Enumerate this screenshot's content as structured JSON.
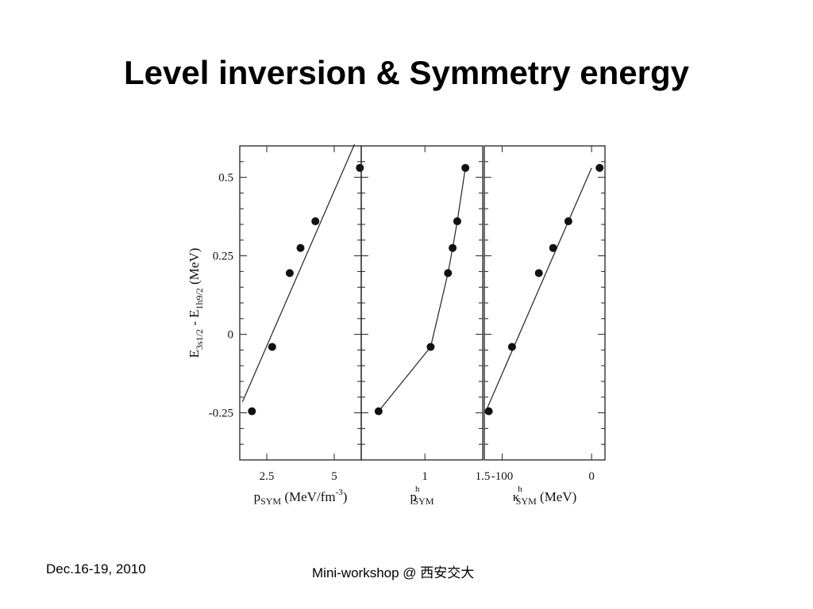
{
  "slide": {
    "title": "Level inversion & Symmetry energy",
    "footer_left": "Dec.16-19, 2010",
    "footer_center": "Mini-workshop @ 西安交大"
  },
  "chart_data": [
    {
      "type": "scatter",
      "panel": "left",
      "xlabel": {
        "base": "p",
        "sub": "SYM",
        "sup": "",
        "unit_html": " (MeV/fm",
        "unit_sup": "-3",
        "unit_end": ")"
      },
      "ylabel": "E_{3s1/2} - E_{1h9/2} (MeV)",
      "xlim": [
        1.5,
        6.0
      ],
      "ylim": [
        -0.4,
        0.6
      ],
      "xticks": [
        2.5,
        5
      ],
      "xtick_labels": [
        "2.5",
        "5"
      ],
      "yticks": [
        -0.25,
        0,
        0.25,
        0.5
      ],
      "ytick_labels": [
        "-0.25",
        "0",
        "0.25",
        "0.5"
      ],
      "points": {
        "x": [
          1.95,
          2.7,
          3.35,
          3.75,
          4.3,
          5.95
        ],
        "y": [
          -0.245,
          -0.04,
          0.195,
          0.275,
          0.36,
          0.53
        ]
      },
      "fit_line": {
        "x": [
          1.6,
          5.75
        ],
        "y": [
          -0.215,
          0.605
        ]
      }
    },
    {
      "type": "line",
      "panel": "middle",
      "xlabel": {
        "base": "p",
        "sub": "SYM",
        "sup": "h",
        "unit_html": "",
        "unit_sup": "",
        "unit_end": ""
      },
      "xlim": [
        0.45,
        1.5
      ],
      "ylim": [
        -0.4,
        0.6
      ],
      "xticks": [
        1.0,
        1.5
      ],
      "xtick_labels": [
        "1",
        "1.5"
      ],
      "points": {
        "x": [
          0.6,
          1.05,
          1.2,
          1.24,
          1.28,
          1.35
        ],
        "y": [
          -0.245,
          -0.04,
          0.195,
          0.275,
          0.36,
          0.53
        ]
      }
    },
    {
      "type": "scatter",
      "panel": "right",
      "xlabel": {
        "base": "κ",
        "sub": "SYM",
        "sup": "h",
        "unit_html": " (MeV)",
        "unit_sup": "",
        "unit_end": ""
      },
      "xlim": [
        -120,
        15
      ],
      "ylim": [
        -0.4,
        0.6
      ],
      "xticks": [
        -100,
        0
      ],
      "xtick_labels": [
        "-100",
        "0"
      ],
      "points": {
        "x": [
          -115,
          -89,
          -59,
          -43,
          -26,
          9
        ],
        "y": [
          -0.245,
          -0.04,
          0.195,
          0.275,
          0.36,
          0.53
        ]
      },
      "fit_line": {
        "x": [
          -119,
          0
        ],
        "y": [
          -0.25,
          0.53
        ]
      }
    }
  ]
}
